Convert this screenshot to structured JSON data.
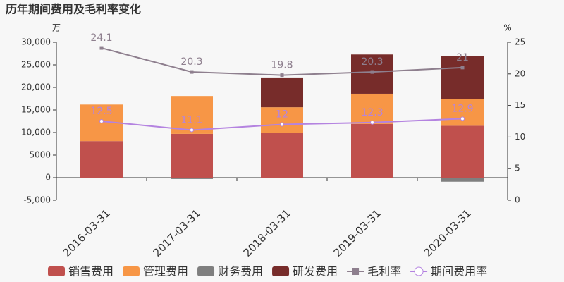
{
  "chart_data": {
    "type": "bar",
    "title": "历年期间费用及毛利率变化",
    "y_unit": "万",
    "y2_unit": "%",
    "categories": [
      "2016-03-31",
      "2017-03-31",
      "2018-03-31",
      "2019-03-31",
      "2020-03-31"
    ],
    "series": [
      {
        "name": "销售费用",
        "color": "#c0504d",
        "values": [
          8100,
          9700,
          10000,
          11900,
          11500
        ]
      },
      {
        "name": "管理费用",
        "color": "#f79646",
        "values": [
          8100,
          8400,
          5600,
          6700,
          6000
        ]
      },
      {
        "name": "财务费用",
        "color": "#7f7f7f",
        "values": [
          0,
          -300,
          0,
          0,
          -900
        ]
      },
      {
        "name": "研发费用",
        "color": "#772c2a",
        "values": [
          0,
          0,
          6600,
          8700,
          9500
        ]
      },
      {
        "name": "毛利率",
        "type": "line",
        "axis": "y2",
        "marker": "square",
        "color": "#8e7f8e",
        "values": [
          24.1,
          20.3,
          19.8,
          20.3,
          21
        ]
      },
      {
        "name": "期间费用率",
        "type": "line",
        "axis": "y2",
        "marker": "circle",
        "color": "#b483e0",
        "values": [
          12.5,
          11.1,
          12,
          12.3,
          12.9
        ]
      }
    ],
    "ylim": [
      -5000,
      30000
    ],
    "yticks": [
      {
        "value": -5000,
        "label": "-5,000"
      },
      0,
      5000,
      {
        "value": 10000,
        "label": "10,000"
      },
      {
        "value": 15000,
        "label": "15,000"
      },
      {
        "value": 20000,
        "label": "20,000"
      },
      {
        "value": 25000,
        "label": "25,000"
      },
      {
        "value": 30000,
        "label": "30,000"
      }
    ],
    "y2lim": [
      0,
      25
    ],
    "y2ticks": [
      0,
      5,
      10,
      15,
      20,
      25
    ],
    "legend": "bottom"
  }
}
